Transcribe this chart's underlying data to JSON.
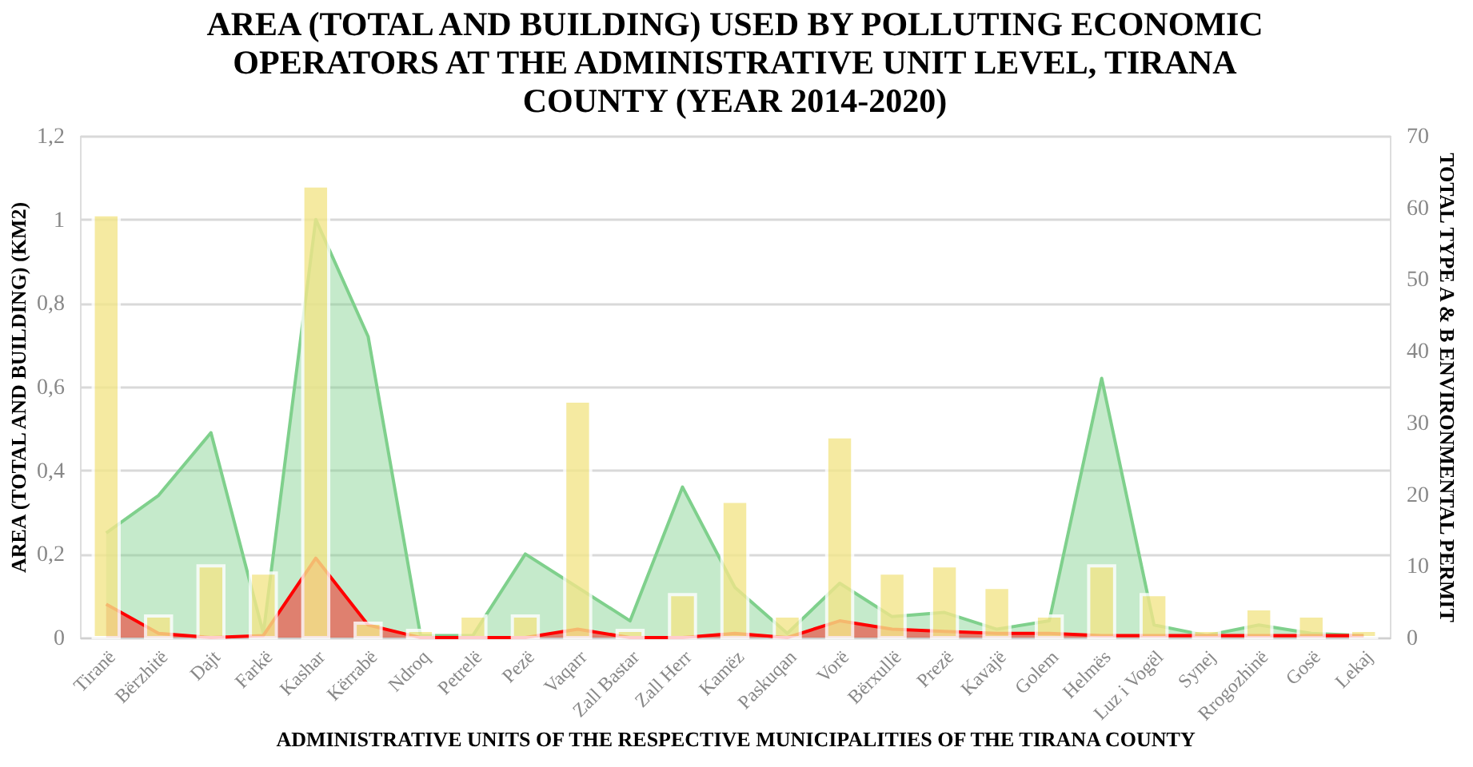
{
  "chart_data": {
    "type": "area",
    "title": [
      "AREA (TOTAL AND BUILDING) USED BY POLLUTING ECONOMIC",
      "OPERATORS AT THE ADMINISTRATIVE UNIT LEVEL, TIRANA",
      "COUNTY (YEAR 2014-2020)"
    ],
    "xlabel": "ADMINISTRATIVE UNITS OF THE RESPECTIVE MUNICIPALITIES OF THE TIRANA COUNTY",
    "ylabel": "AREA (TOTAL AND BUILDING) (KM2)",
    "y2label": "TOTAL TYPE A & B ENVIRONMENTAL PERMIT",
    "categories": [
      "Tiranë",
      "Bërzhitë",
      "Dajt",
      "Farkë",
      "Kashar",
      "Kërrabë",
      "Ndroq",
      "Petrelë",
      "Pezë",
      "Vaqarr",
      "Zall Bastar",
      "Zall Herr",
      "Kamëz",
      "Paskuqan",
      "Vorë",
      "Bërxullë",
      "Prezë",
      "Kavajë",
      "Golem",
      "Helmës",
      "Luz i Vogël",
      "Synej",
      "Rrogozhinë",
      "Gosë",
      "Lekaj"
    ],
    "series": [
      {
        "color": "#7fd08c",
        "values": [
          0.25,
          0.34,
          0.49,
          0.01,
          1.0,
          0.72,
          0.005,
          0.005,
          0.2,
          0.12,
          0.04,
          0.36,
          0.12,
          0.01,
          0.13,
          0.05,
          0.06,
          0.02,
          0.04,
          0.62,
          0.03,
          0.005,
          0.03,
          0.01,
          0.005
        ]
      },
      {
        "color": "#ff0000",
        "values": [
          0.08,
          0.01,
          0.0,
          0.005,
          0.19,
          0.03,
          0.0,
          0.0,
          0.0,
          0.02,
          0.0,
          0.0,
          0.01,
          0.0,
          0.04,
          0.02,
          0.015,
          0.01,
          0.01,
          0.005,
          0.005,
          0.005,
          0.005,
          0.005,
          0.005
        ]
      },
      {
        "type": "bar",
        "axis": "y2",
        "color": "#f3e68a",
        "values": [
          59,
          3,
          10,
          9,
          63,
          2,
          1,
          3,
          3,
          33,
          1,
          6,
          19,
          3,
          28,
          9,
          10,
          7,
          3,
          10,
          6,
          1,
          4,
          3,
          1
        ]
      }
    ],
    "ylim": [
      0,
      1.2
    ],
    "yticks": [
      0,
      {
        "value": 0.2,
        "label": "0,2"
      },
      {
        "value": 0.4,
        "label": "0,4"
      },
      {
        "value": 0.6,
        "label": "0,6"
      },
      {
        "value": 0.8,
        "label": "0,8"
      },
      1,
      {
        "value": 1.2,
        "label": "1,2"
      }
    ],
    "y2lim": [
      0,
      70
    ],
    "y2ticks": [
      0,
      10,
      20,
      30,
      40,
      50,
      60,
      70
    ],
    "grid": "y",
    "legend": false
  }
}
